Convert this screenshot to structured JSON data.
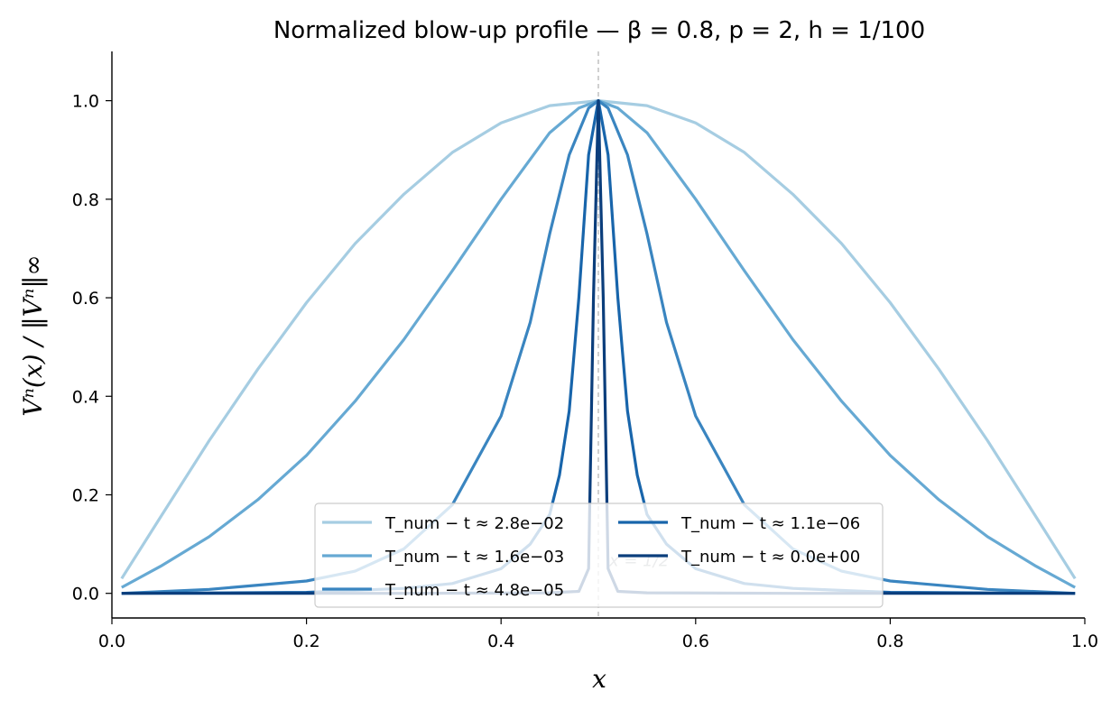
{
  "chart_data": {
    "type": "line",
    "title": "Normalized blow-up profile — β = 0.8, p = 2, h = 1/100",
    "xlabel": "x",
    "ylabel": "Vⁿ(x) / ‖Vⁿ‖∞",
    "xlim": [
      0.0,
      1.0
    ],
    "ylim": [
      -0.05,
      1.1
    ],
    "xticks": [
      "0.0",
      "0.2",
      "0.4",
      "0.6",
      "0.8",
      "1.0"
    ],
    "yticks": [
      "0.0",
      "0.2",
      "0.4",
      "0.6",
      "0.8",
      "1.0"
    ],
    "xtick_values": [
      0.0,
      0.2,
      0.4,
      0.6,
      0.8,
      1.0
    ],
    "ytick_values": [
      0.0,
      0.2,
      0.4,
      0.6,
      0.8,
      1.0
    ],
    "grid": false,
    "legend_position": "bottom-center",
    "legend_columns": 2,
    "reference_line": {
      "x": 0.5,
      "label": "x = 1/2"
    },
    "series": [
      {
        "name": "T_num − t ≈ 2.8e−02",
        "color": "#a6cde2",
        "x": [
          0.01,
          0.05,
          0.1,
          0.15,
          0.2,
          0.25,
          0.3,
          0.35,
          0.4,
          0.45,
          0.5,
          0.55,
          0.6,
          0.65,
          0.7,
          0.75,
          0.8,
          0.85,
          0.9,
          0.95,
          0.99
        ],
        "y": [
          0.03,
          0.155,
          0.31,
          0.455,
          0.59,
          0.71,
          0.81,
          0.895,
          0.955,
          0.99,
          1.0,
          0.99,
          0.955,
          0.895,
          0.81,
          0.71,
          0.59,
          0.455,
          0.31,
          0.155,
          0.03
        ]
      },
      {
        "name": "T_num − t ≈ 1.6e−03",
        "color": "#66a9d3",
        "x": [
          0.01,
          0.05,
          0.1,
          0.15,
          0.2,
          0.25,
          0.3,
          0.35,
          0.4,
          0.45,
          0.48,
          0.5,
          0.52,
          0.55,
          0.6,
          0.65,
          0.7,
          0.75,
          0.8,
          0.85,
          0.9,
          0.95,
          0.99
        ],
        "y": [
          0.012,
          0.055,
          0.115,
          0.19,
          0.28,
          0.39,
          0.515,
          0.655,
          0.8,
          0.935,
          0.985,
          1.0,
          0.985,
          0.935,
          0.8,
          0.655,
          0.515,
          0.39,
          0.28,
          0.19,
          0.115,
          0.055,
          0.012
        ]
      },
      {
        "name": "T_num − t ≈ 4.8e−05",
        "color": "#3a85c0",
        "x": [
          0.01,
          0.1,
          0.2,
          0.25,
          0.3,
          0.35,
          0.4,
          0.43,
          0.45,
          0.47,
          0.49,
          0.5,
          0.51,
          0.53,
          0.55,
          0.57,
          0.6,
          0.65,
          0.7,
          0.75,
          0.8,
          0.9,
          0.99
        ],
        "y": [
          0.0,
          0.008,
          0.025,
          0.045,
          0.09,
          0.18,
          0.36,
          0.55,
          0.73,
          0.89,
          0.985,
          1.0,
          0.985,
          0.89,
          0.73,
          0.55,
          0.36,
          0.18,
          0.09,
          0.045,
          0.025,
          0.008,
          0.0
        ]
      },
      {
        "name": "T_num − t ≈ 1.1e−06",
        "color": "#1865ab",
        "x": [
          0.01,
          0.2,
          0.3,
          0.35,
          0.4,
          0.43,
          0.45,
          0.46,
          0.47,
          0.48,
          0.49,
          0.5,
          0.51,
          0.52,
          0.53,
          0.54,
          0.55,
          0.57,
          0.6,
          0.65,
          0.7,
          0.8,
          0.99
        ],
        "y": [
          0.0,
          0.002,
          0.01,
          0.02,
          0.05,
          0.1,
          0.16,
          0.24,
          0.37,
          0.6,
          0.89,
          1.0,
          0.89,
          0.6,
          0.37,
          0.24,
          0.16,
          0.1,
          0.05,
          0.02,
          0.01,
          0.002,
          0.0
        ]
      },
      {
        "name": "T_num − t ≈ 0.0e+00",
        "color": "#0b3e7c",
        "x": [
          0.01,
          0.3,
          0.45,
          0.48,
          0.49,
          0.495,
          0.5,
          0.505,
          0.51,
          0.52,
          0.55,
          0.7,
          0.99
        ],
        "y": [
          0.0,
          0.0,
          0.001,
          0.004,
          0.05,
          0.6,
          1.0,
          0.6,
          0.05,
          0.004,
          0.001,
          0.0,
          0.0
        ]
      }
    ]
  }
}
